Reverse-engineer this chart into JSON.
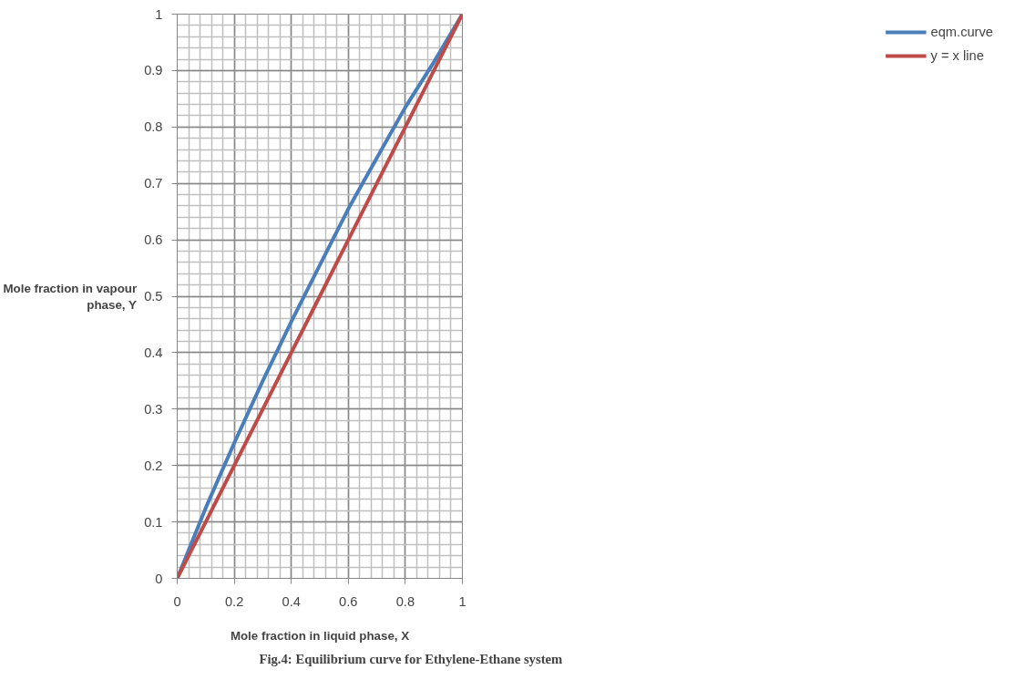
{
  "chart_data": {
    "type": "line",
    "xlabel": "Mole fraction in liquid phase, X",
    "ylabel": "Mole fraction in vapour phase, Y",
    "annotations": [
      "Fig.4: Equilibrium curve for Ethylene-Ethane system"
    ],
    "x": [
      0,
      0.1,
      0.2,
      0.3,
      0.4,
      0.5,
      0.6,
      0.7,
      0.8,
      0.9,
      1
    ],
    "series": [
      {
        "name": "eqm.curve",
        "color": "#4a7ebb",
        "values": [
          0,
          0.125,
          0.24,
          0.35,
          0.455,
          0.555,
          0.655,
          0.745,
          0.835,
          0.915,
          1
        ]
      },
      {
        "name": "y = x line",
        "color": "#be4b48",
        "values": [
          0,
          0.1,
          0.2,
          0.3,
          0.4,
          0.5,
          0.6,
          0.7,
          0.8,
          0.9,
          1
        ]
      }
    ],
    "xlim": [
      0,
      1
    ],
    "xticks": [
      0,
      0.2,
      0.4,
      0.6,
      0.8,
      1
    ],
    "ylim": [
      0,
      1
    ],
    "yticks": [
      0,
      0.1,
      0.2,
      0.3,
      0.4,
      0.5,
      0.6,
      0.7,
      0.8,
      0.9,
      1
    ],
    "grid": true,
    "legend": "right",
    "marker": "none",
    "line_style": "solid"
  }
}
